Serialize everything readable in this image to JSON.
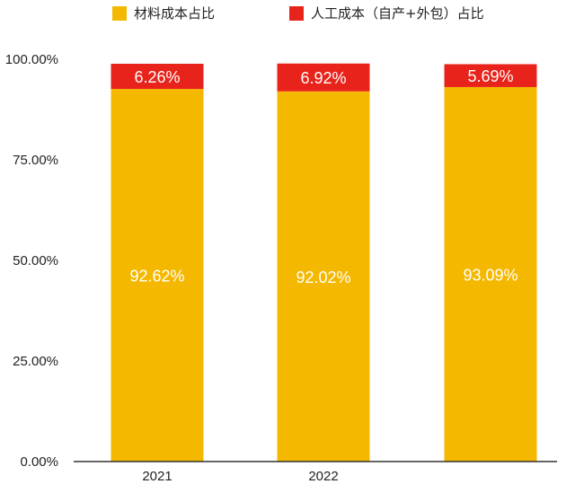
{
  "chart_data": {
    "type": "bar",
    "stacked": true,
    "categories": [
      "2021",
      "2022",
      ""
    ],
    "series": [
      {
        "name": "材料成本占比",
        "values": [
          92.62,
          92.02,
          93.09
        ],
        "labels": [
          "92.62%",
          "92.02%",
          "93.09%"
        ],
        "color": "#F5B800"
      },
      {
        "name": "人工成本（自产+外包）占比",
        "values": [
          6.26,
          6.92,
          5.69
        ],
        "labels": [
          "6.26%",
          "6.92%",
          "5.69%"
        ],
        "color": "#E8231B"
      }
    ],
    "yticks": [
      {
        "value": 0,
        "label": "0.00%"
      },
      {
        "value": 25,
        "label": "25.00%"
      },
      {
        "value": 50,
        "label": "50.00%"
      },
      {
        "value": 75,
        "label": "75.00%"
      },
      {
        "value": 100,
        "label": "100.00%"
      }
    ],
    "ylim": [
      0,
      100
    ],
    "grid": false,
    "legend_position": "top"
  }
}
